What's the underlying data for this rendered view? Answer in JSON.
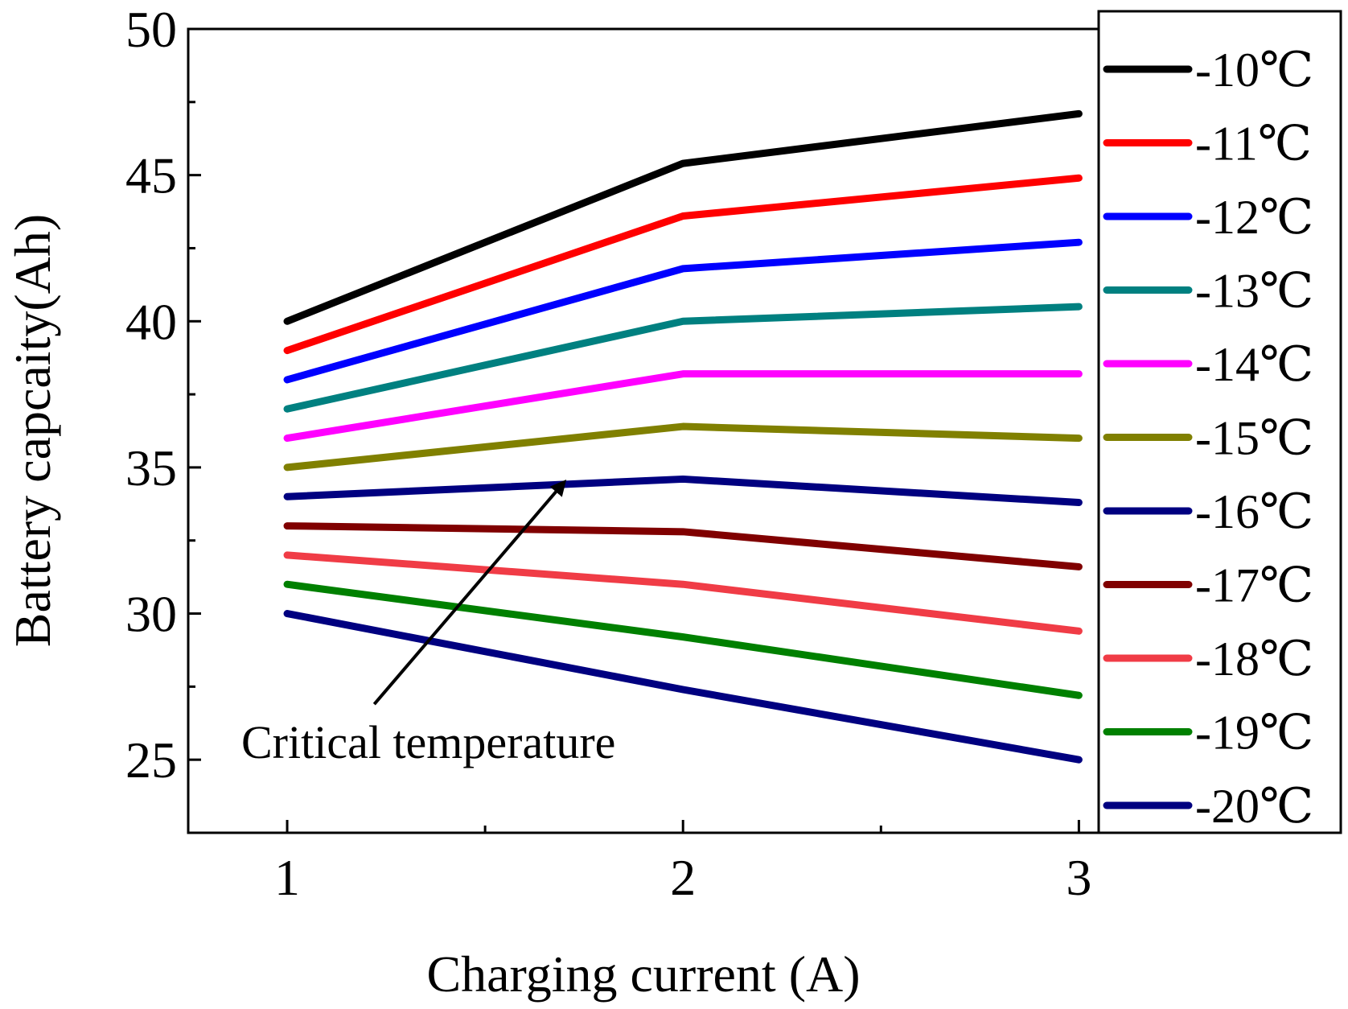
{
  "chart_data": {
    "type": "line",
    "title": "",
    "xlabel": "Charging current (A)",
    "ylabel": "Battery capcaity(Ah)",
    "x": [
      1,
      2,
      3
    ],
    "xlim": [
      0.75,
      3.05
    ],
    "ylim": [
      22.5,
      50
    ],
    "xticks": [
      1,
      2,
      3
    ],
    "yticks": [
      25,
      30,
      35,
      40,
      45,
      50
    ],
    "grid": false,
    "legend_position": "right",
    "series": [
      {
        "name": "-10℃",
        "color": "#000000",
        "values": [
          40.0,
          45.4,
          47.1
        ]
      },
      {
        "name": "-11℃",
        "color": "#ff0000",
        "values": [
          39.0,
          43.6,
          44.9
        ]
      },
      {
        "name": "-12℃",
        "color": "#0000ff",
        "values": [
          38.0,
          41.8,
          42.7
        ]
      },
      {
        "name": "-13℃",
        "color": "#008080",
        "values": [
          37.0,
          40.0,
          40.5
        ]
      },
      {
        "name": "-14℃",
        "color": "#ff00ff",
        "values": [
          36.0,
          38.2,
          38.2
        ]
      },
      {
        "name": "-15℃",
        "color": "#808000",
        "values": [
          35.0,
          36.4,
          36.0
        ]
      },
      {
        "name": "-16℃",
        "color": "#000080",
        "values": [
          34.0,
          34.6,
          33.8
        ]
      },
      {
        "name": "-17℃",
        "color": "#800000",
        "values": [
          33.0,
          32.8,
          31.6
        ]
      },
      {
        "name": "-18℃",
        "color": "#f03c46",
        "values": [
          32.0,
          31.0,
          29.4
        ]
      },
      {
        "name": "-19℃",
        "color": "#008000",
        "values": [
          31.0,
          29.2,
          27.2
        ]
      },
      {
        "name": "-20℃",
        "color": "#000080",
        "values": [
          30.0,
          27.4,
          25.0
        ]
      }
    ],
    "annotations": [
      {
        "text": "Critical temperature",
        "arrow_from": [
          1.22,
          26.9
        ],
        "arrow_to": [
          1.7,
          34.5
        ]
      }
    ]
  }
}
